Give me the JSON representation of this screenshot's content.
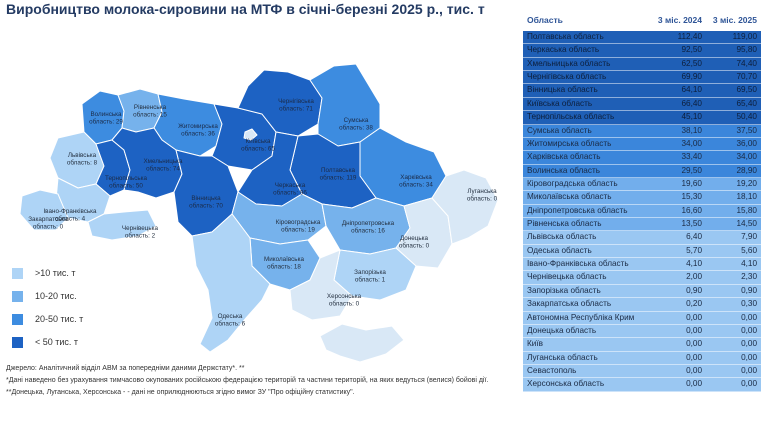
{
  "title": "Виробництво молока-сировини на МТФ в січні-березні 2025 р., тис. т",
  "colors": {
    "lt10": "#aed4f6",
    "10to20": "#76b2ec",
    "20to50": "#3d8ce0",
    "gt50": "#1d62c3",
    "occupied": "#d9e8f6",
    "table_dark": "#1f5fb6",
    "table_mid": "#3b86db",
    "table_light": "#72aeec",
    "table_pale": "#9ac7f2"
  },
  "legend": [
    {
      "label": ">10 тис. т",
      "color_key": "lt10"
    },
    {
      "label": "10-20 тис.",
      "color_key": "10to20"
    },
    {
      "label": "20-50 тис. т",
      "color_key": "20to50"
    },
    {
      "label": "< 50 тис. т",
      "color_key": "gt50"
    }
  ],
  "notes": {
    "source": "Джерело: Аналітичний відділ АВМ за попередніми даними Держстату*. **",
    "note1": "*Дані наведено без урахування тимчасово окупованих російською федерацією територій та частини територій, на яких ведуться (велися) бойові дії.",
    "note2": "**Донецька, Луганська, Херсонська - - дані не оприлюднюються згідно вимог ЗУ \"Про офіційну статистику\"."
  },
  "map_labels": [
    {
      "l1": "Волинська",
      "l2": "область: 29"
    },
    {
      "l1": "Рівненська",
      "l2": "область: 15"
    },
    {
      "l1": "Житомирська",
      "l2": "область: 36"
    },
    {
      "l1": "Чернігівська",
      "l2": "область: 71"
    },
    {
      "l1": "Сумська",
      "l2": "область: 38"
    },
    {
      "l1": "Київська",
      "l2": "область: 65"
    },
    {
      "l1": "Львівська",
      "l2": "область: 8"
    },
    {
      "l1": "Хмельницька",
      "l2": "область: 74"
    },
    {
      "l1": "Тернопільська",
      "l2": "область: 50"
    },
    {
      "l1": "Вінницька",
      "l2": "область: 70"
    },
    {
      "l1": "Черкаська",
      "l2": "область: 96"
    },
    {
      "l1": "Полтавська",
      "l2": "область: 119"
    },
    {
      "l1": "Харківська",
      "l2": "область: 34"
    },
    {
      "l1": "Луганська",
      "l2": "область: 0"
    },
    {
      "l1": "Івано-Франківська",
      "l2": "область: 4"
    },
    {
      "l1": "Закарпатська",
      "l2": "область: 0"
    },
    {
      "l1": "Чернівецька",
      "l2": "область: 2"
    },
    {
      "l1": "Кіровоградська",
      "l2": "область: 19"
    },
    {
      "l1": "Дніпропетровська",
      "l2": "область: 16"
    },
    {
      "l1": "Донецька",
      "l2": "область: 0"
    },
    {
      "l1": "Миколаївська",
      "l2": "область: 18"
    },
    {
      "l1": "Запорізька",
      "l2": "область: 1"
    },
    {
      "l1": "Херсонська",
      "l2": "область: 0"
    },
    {
      "l1": "Одеська",
      "l2": "область: 6"
    }
  ],
  "chart_data": {
    "type": "table",
    "title": "Виробництво молока-сировини на МТФ в січні-березні 2025 р., тис. т",
    "columns": [
      "Область",
      "3 міс. 2024",
      "3 міс. 2025"
    ],
    "rows": [
      {
        "region": "Полтавська область",
        "v2024": "112,40",
        "v2025": "119,00",
        "shade": "table_dark"
      },
      {
        "region": "Черкаська область",
        "v2024": "92,50",
        "v2025": "95,80",
        "shade": "table_dark"
      },
      {
        "region": "Хмельницька область",
        "v2024": "62,50",
        "v2025": "74,40",
        "shade": "table_dark"
      },
      {
        "region": "Чернігівська область",
        "v2024": "69,90",
        "v2025": "70,70",
        "shade": "table_dark"
      },
      {
        "region": "Вінницька область",
        "v2024": "64,10",
        "v2025": "69,50",
        "shade": "table_dark"
      },
      {
        "region": "Київська область",
        "v2024": "66,40",
        "v2025": "65,40",
        "shade": "table_dark"
      },
      {
        "region": "Тернопільська область",
        "v2024": "45,10",
        "v2025": "50,40",
        "shade": "table_dark"
      },
      {
        "region": "Сумська область",
        "v2024": "38,10",
        "v2025": "37,50",
        "shade": "table_mid"
      },
      {
        "region": "Житомирська область",
        "v2024": "34,00",
        "v2025": "36,00",
        "shade": "table_mid"
      },
      {
        "region": "Харківська область",
        "v2024": "33,40",
        "v2025": "34,00",
        "shade": "table_mid"
      },
      {
        "region": "Волинська область",
        "v2024": "29,50",
        "v2025": "28,90",
        "shade": "table_mid"
      },
      {
        "region": "Кіровоградська область",
        "v2024": "19,60",
        "v2025": "19,20",
        "shade": "table_light"
      },
      {
        "region": "Миколаївська область",
        "v2024": "15,30",
        "v2025": "18,10",
        "shade": "table_light"
      },
      {
        "region": "Дніпропетровська область",
        "v2024": "16,60",
        "v2025": "15,80",
        "shade": "table_light"
      },
      {
        "region": "Рівненська область",
        "v2024": "13,50",
        "v2025": "14,50",
        "shade": "table_light"
      },
      {
        "region": "Львівська область",
        "v2024": "6,40",
        "v2025": "7,90",
        "shade": "table_pale"
      },
      {
        "region": "Одеська область",
        "v2024": "5,70",
        "v2025": "5,60",
        "shade": "table_pale"
      },
      {
        "region": "Івано-Франківська область",
        "v2024": "4,10",
        "v2025": "4,10",
        "shade": "table_pale"
      },
      {
        "region": "Чернівецька область",
        "v2024": "2,00",
        "v2025": "2,30",
        "shade": "table_pale"
      },
      {
        "region": "Запорізька область",
        "v2024": "0,90",
        "v2025": "0,90",
        "shade": "table_pale"
      },
      {
        "region": "Закарпатська область",
        "v2024": "0,20",
        "v2025": "0,30",
        "shade": "table_pale"
      },
      {
        "region": "Автономна Республіка Крим",
        "v2024": "0,00",
        "v2025": "0,00",
        "shade": "table_pale"
      },
      {
        "region": "Донецька область",
        "v2024": "0,00",
        "v2025": "0,00",
        "shade": "table_pale"
      },
      {
        "region": "Київ",
        "v2024": "0,00",
        "v2025": "0,00",
        "shade": "table_pale"
      },
      {
        "region": "Луганська область",
        "v2024": "0,00",
        "v2025": "0,00",
        "shade": "table_pale"
      },
      {
        "region": "Севастополь",
        "v2024": "0,00",
        "v2025": "0,00",
        "shade": "table_pale"
      },
      {
        "region": "Херсонська область",
        "v2024": "0,00",
        "v2025": "0,00",
        "shade": "table_pale"
      }
    ]
  }
}
